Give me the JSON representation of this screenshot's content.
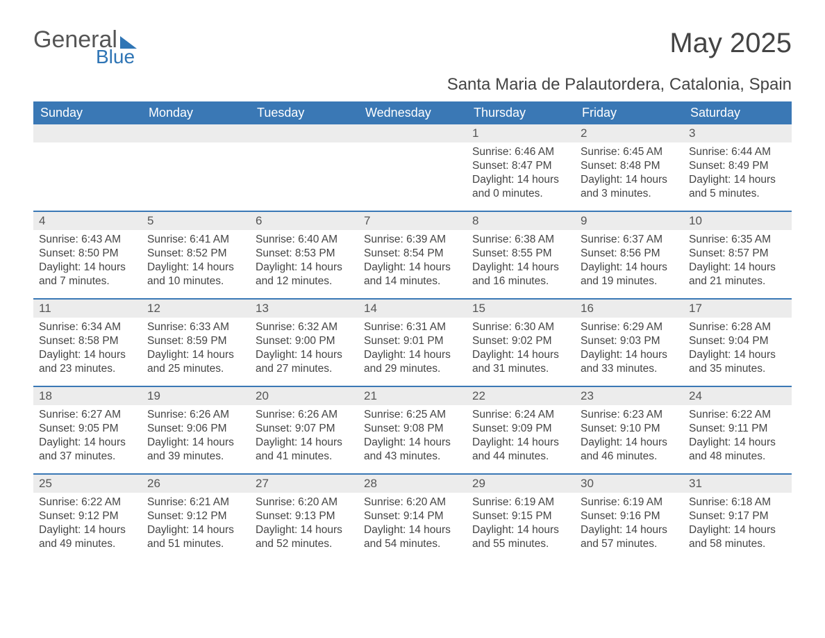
{
  "brand": {
    "line1": "General",
    "line2": "Blue",
    "brand_color": "#2f75b5"
  },
  "title": "May 2025",
  "location": "Santa Maria de Palautordera, Catalonia, Spain",
  "colors": {
    "header_bg": "#3a78b5",
    "header_text": "#ffffff",
    "daynum_bg": "#ececec",
    "text": "#444444",
    "week_border": "#3a78b5",
    "page_bg": "#ffffff"
  },
  "day_headers": [
    "Sunday",
    "Monday",
    "Tuesday",
    "Wednesday",
    "Thursday",
    "Friday",
    "Saturday"
  ],
  "weeks": [
    [
      {
        "blank": true
      },
      {
        "blank": true
      },
      {
        "blank": true
      },
      {
        "blank": true
      },
      {
        "n": "1",
        "sunrise": "Sunrise: 6:46 AM",
        "sunset": "Sunset: 8:47 PM",
        "daylight": "Daylight: 14 hours and 0 minutes."
      },
      {
        "n": "2",
        "sunrise": "Sunrise: 6:45 AM",
        "sunset": "Sunset: 8:48 PM",
        "daylight": "Daylight: 14 hours and 3 minutes."
      },
      {
        "n": "3",
        "sunrise": "Sunrise: 6:44 AM",
        "sunset": "Sunset: 8:49 PM",
        "daylight": "Daylight: 14 hours and 5 minutes."
      }
    ],
    [
      {
        "n": "4",
        "sunrise": "Sunrise: 6:43 AM",
        "sunset": "Sunset: 8:50 PM",
        "daylight": "Daylight: 14 hours and 7 minutes."
      },
      {
        "n": "5",
        "sunrise": "Sunrise: 6:41 AM",
        "sunset": "Sunset: 8:52 PM",
        "daylight": "Daylight: 14 hours and 10 minutes."
      },
      {
        "n": "6",
        "sunrise": "Sunrise: 6:40 AM",
        "sunset": "Sunset: 8:53 PM",
        "daylight": "Daylight: 14 hours and 12 minutes."
      },
      {
        "n": "7",
        "sunrise": "Sunrise: 6:39 AM",
        "sunset": "Sunset: 8:54 PM",
        "daylight": "Daylight: 14 hours and 14 minutes."
      },
      {
        "n": "8",
        "sunrise": "Sunrise: 6:38 AM",
        "sunset": "Sunset: 8:55 PM",
        "daylight": "Daylight: 14 hours and 16 minutes."
      },
      {
        "n": "9",
        "sunrise": "Sunrise: 6:37 AM",
        "sunset": "Sunset: 8:56 PM",
        "daylight": "Daylight: 14 hours and 19 minutes."
      },
      {
        "n": "10",
        "sunrise": "Sunrise: 6:35 AM",
        "sunset": "Sunset: 8:57 PM",
        "daylight": "Daylight: 14 hours and 21 minutes."
      }
    ],
    [
      {
        "n": "11",
        "sunrise": "Sunrise: 6:34 AM",
        "sunset": "Sunset: 8:58 PM",
        "daylight": "Daylight: 14 hours and 23 minutes."
      },
      {
        "n": "12",
        "sunrise": "Sunrise: 6:33 AM",
        "sunset": "Sunset: 8:59 PM",
        "daylight": "Daylight: 14 hours and 25 minutes."
      },
      {
        "n": "13",
        "sunrise": "Sunrise: 6:32 AM",
        "sunset": "Sunset: 9:00 PM",
        "daylight": "Daylight: 14 hours and 27 minutes."
      },
      {
        "n": "14",
        "sunrise": "Sunrise: 6:31 AM",
        "sunset": "Sunset: 9:01 PM",
        "daylight": "Daylight: 14 hours and 29 minutes."
      },
      {
        "n": "15",
        "sunrise": "Sunrise: 6:30 AM",
        "sunset": "Sunset: 9:02 PM",
        "daylight": "Daylight: 14 hours and 31 minutes."
      },
      {
        "n": "16",
        "sunrise": "Sunrise: 6:29 AM",
        "sunset": "Sunset: 9:03 PM",
        "daylight": "Daylight: 14 hours and 33 minutes."
      },
      {
        "n": "17",
        "sunrise": "Sunrise: 6:28 AM",
        "sunset": "Sunset: 9:04 PM",
        "daylight": "Daylight: 14 hours and 35 minutes."
      }
    ],
    [
      {
        "n": "18",
        "sunrise": "Sunrise: 6:27 AM",
        "sunset": "Sunset: 9:05 PM",
        "daylight": "Daylight: 14 hours and 37 minutes."
      },
      {
        "n": "19",
        "sunrise": "Sunrise: 6:26 AM",
        "sunset": "Sunset: 9:06 PM",
        "daylight": "Daylight: 14 hours and 39 minutes."
      },
      {
        "n": "20",
        "sunrise": "Sunrise: 6:26 AM",
        "sunset": "Sunset: 9:07 PM",
        "daylight": "Daylight: 14 hours and 41 minutes."
      },
      {
        "n": "21",
        "sunrise": "Sunrise: 6:25 AM",
        "sunset": "Sunset: 9:08 PM",
        "daylight": "Daylight: 14 hours and 43 minutes."
      },
      {
        "n": "22",
        "sunrise": "Sunrise: 6:24 AM",
        "sunset": "Sunset: 9:09 PM",
        "daylight": "Daylight: 14 hours and 44 minutes."
      },
      {
        "n": "23",
        "sunrise": "Sunrise: 6:23 AM",
        "sunset": "Sunset: 9:10 PM",
        "daylight": "Daylight: 14 hours and 46 minutes."
      },
      {
        "n": "24",
        "sunrise": "Sunrise: 6:22 AM",
        "sunset": "Sunset: 9:11 PM",
        "daylight": "Daylight: 14 hours and 48 minutes."
      }
    ],
    [
      {
        "n": "25",
        "sunrise": "Sunrise: 6:22 AM",
        "sunset": "Sunset: 9:12 PM",
        "daylight": "Daylight: 14 hours and 49 minutes."
      },
      {
        "n": "26",
        "sunrise": "Sunrise: 6:21 AM",
        "sunset": "Sunset: 9:12 PM",
        "daylight": "Daylight: 14 hours and 51 minutes."
      },
      {
        "n": "27",
        "sunrise": "Sunrise: 6:20 AM",
        "sunset": "Sunset: 9:13 PM",
        "daylight": "Daylight: 14 hours and 52 minutes."
      },
      {
        "n": "28",
        "sunrise": "Sunrise: 6:20 AM",
        "sunset": "Sunset: 9:14 PM",
        "daylight": "Daylight: 14 hours and 54 minutes."
      },
      {
        "n": "29",
        "sunrise": "Sunrise: 6:19 AM",
        "sunset": "Sunset: 9:15 PM",
        "daylight": "Daylight: 14 hours and 55 minutes."
      },
      {
        "n": "30",
        "sunrise": "Sunrise: 6:19 AM",
        "sunset": "Sunset: 9:16 PM",
        "daylight": "Daylight: 14 hours and 57 minutes."
      },
      {
        "n": "31",
        "sunrise": "Sunrise: 6:18 AM",
        "sunset": "Sunset: 9:17 PM",
        "daylight": "Daylight: 14 hours and 58 minutes."
      }
    ]
  ]
}
